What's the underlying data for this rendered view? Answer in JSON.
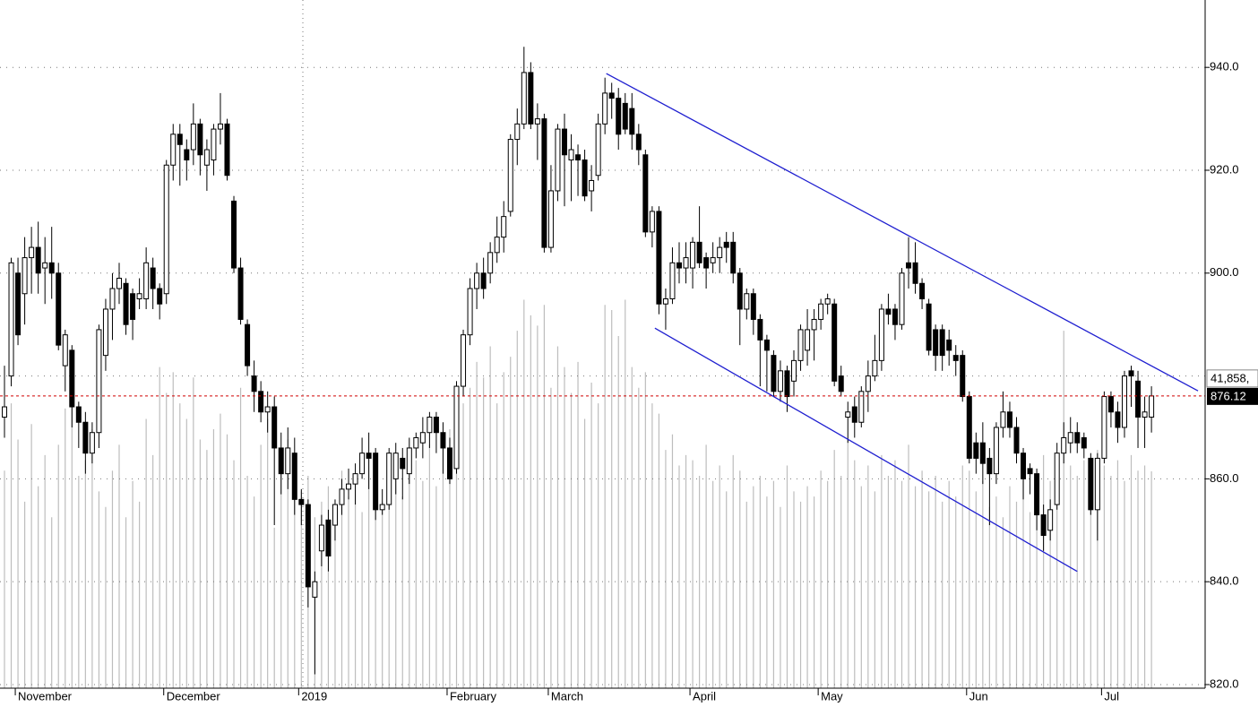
{
  "chart_data": {
    "type": "candlestick",
    "categories": [
      null,
      null,
      "November",
      null,
      null,
      null,
      null,
      null,
      null,
      null,
      null,
      null,
      null,
      null,
      null,
      null,
      null,
      null,
      null,
      null,
      null,
      null,
      null,
      null,
      "December",
      null,
      null,
      null,
      null,
      null,
      null,
      null,
      null,
      null,
      null,
      null,
      null,
      null,
      null,
      null,
      null,
      null,
      null,
      null,
      "2019",
      null,
      null,
      null,
      null,
      null,
      null,
      null,
      null,
      null,
      null,
      null,
      null,
      null,
      null,
      null,
      null,
      null,
      null,
      null,
      null,
      null,
      "February",
      null,
      null,
      null,
      null,
      null,
      null,
      null,
      null,
      null,
      null,
      null,
      null,
      null,
      null,
      "March",
      null,
      null,
      null,
      null,
      null,
      null,
      null,
      null,
      null,
      null,
      null,
      null,
      null,
      null,
      null,
      null,
      null,
      null,
      null,
      null,
      "April",
      null,
      null,
      null,
      null,
      null,
      null,
      null,
      null,
      null,
      null,
      null,
      null,
      null,
      null,
      null,
      null,
      null,
      null,
      "May",
      null,
      null,
      null,
      null,
      null,
      null,
      null,
      null,
      null,
      null,
      null,
      null,
      null,
      null,
      null,
      null,
      null,
      null,
      null,
      null,
      null,
      "Jun",
      null,
      null,
      null,
      null,
      null,
      null,
      null,
      null,
      null,
      null,
      null,
      null,
      null,
      null,
      null,
      null,
      null,
      null,
      null,
      "Jul",
      null,
      null,
      null,
      null,
      null,
      null,
      null
    ],
    "open": [
      872,
      880,
      900,
      896,
      903,
      905,
      901,
      902,
      900,
      882,
      885,
      874,
      871,
      865,
      869,
      884,
      893,
      897,
      898,
      896,
      895,
      895,
      901,
      897,
      896,
      921,
      927,
      924,
      924,
      929,
      921,
      922,
      928,
      929,
      914,
      901,
      890,
      880,
      877,
      873,
      874,
      866,
      861,
      865,
      856,
      855,
      837,
      846,
      852,
      851,
      855,
      858,
      859,
      861,
      865,
      865,
      854,
      855,
      860,
      864,
      861,
      866,
      867,
      869,
      872,
      869,
      866,
      862,
      878,
      888,
      897,
      900,
      900,
      904,
      907,
      912,
      926,
      929,
      939,
      929,
      930,
      905,
      916,
      928,
      922,
      923,
      922,
      916,
      919,
      929,
      935,
      934,
      933,
      932,
      927,
      923,
      908,
      912,
      894,
      895,
      902,
      901,
      901,
      906,
      903,
      902,
      903,
      906,
      906,
      900,
      893,
      896,
      891,
      887,
      884,
      877,
      881,
      879,
      883,
      885,
      889,
      891,
      894,
      894,
      880,
      872,
      874,
      871,
      877,
      880,
      883,
      893,
      893,
      890,
      902,
      902,
      898,
      894,
      889,
      889,
      887,
      884,
      884,
      876,
      867,
      867,
      864,
      861,
      870,
      873,
      870,
      865,
      862,
      861,
      853,
      850,
      855,
      865,
      867,
      869,
      868,
      864,
      854,
      864,
      876,
      873,
      870,
      881,
      879,
      872,
      872
    ],
    "high": [
      882,
      903,
      903,
      907,
      909,
      910,
      907,
      909,
      902,
      889,
      886,
      875,
      873,
      871,
      890,
      895,
      900,
      902,
      899,
      897,
      899,
      905,
      903,
      898,
      922,
      929,
      929,
      926,
      933,
      930,
      926,
      929,
      935,
      930,
      915,
      903,
      891,
      883,
      879,
      877,
      876,
      869,
      870,
      868,
      858,
      856,
      842,
      853,
      854,
      856,
      860,
      862,
      863,
      868,
      869,
      866,
      858,
      866,
      867,
      866,
      868,
      869,
      872,
      873,
      873,
      871,
      868,
      879,
      889,
      899,
      902,
      903,
      906,
      911,
      914,
      927,
      932,
      944,
      941,
      933,
      931,
      921,
      929,
      931,
      927,
      925,
      924,
      921,
      931,
      938,
      937,
      936,
      935,
      935,
      929,
      924,
      913,
      913,
      897,
      905,
      906,
      906,
      907,
      913,
      904,
      906,
      907,
      908,
      908,
      901,
      897,
      897,
      892,
      888,
      885,
      883,
      882,
      885,
      890,
      893,
      893,
      895,
      896,
      895,
      882,
      875,
      876,
      878,
      883,
      888,
      894,
      896,
      894,
      901,
      907,
      906,
      899,
      895,
      890,
      890,
      889,
      886,
      885,
      877,
      869,
      871,
      866,
      871,
      877,
      875,
      872,
      866,
      863,
      862,
      855,
      856,
      867,
      871,
      872,
      871,
      869,
      865,
      865,
      877,
      877,
      875,
      881,
      882,
      881,
      876,
      878
    ],
    "low": [
      868,
      878,
      886,
      890,
      896,
      896,
      894,
      895,
      885,
      877,
      870,
      866,
      861,
      863,
      866,
      881,
      887,
      894,
      888,
      887,
      893,
      893,
      893,
      891,
      894,
      918,
      917,
      918,
      921,
      919,
      916,
      919,
      925,
      918,
      900,
      890,
      880,
      873,
      871,
      869,
      851,
      857,
      858,
      853,
      851,
      835,
      822,
      843,
      842,
      848,
      853,
      856,
      855,
      860,
      858,
      852,
      853,
      854,
      857,
      856,
      859,
      864,
      864,
      866,
      865,
      861,
      859,
      861,
      876,
      886,
      893,
      895,
      898,
      902,
      904,
      911,
      921,
      928,
      928,
      922,
      904,
      904,
      914,
      913,
      914,
      915,
      914,
      912,
      918,
      927,
      930,
      924,
      927,
      924,
      921,
      907,
      905,
      892,
      889,
      894,
      898,
      898,
      897,
      901,
      897,
      900,
      900,
      902,
      898,
      886,
      891,
      888,
      878,
      877,
      876,
      875,
      873,
      876,
      881,
      882,
      883,
      889,
      892,
      878,
      876,
      867,
      868,
      870,
      873,
      879,
      881,
      890,
      887,
      889,
      897,
      896,
      893,
      884,
      881,
      881,
      882,
      880,
      875,
      863,
      861,
      859,
      851,
      859,
      868,
      868,
      863,
      856,
      857,
      850,
      846,
      848,
      854,
      863,
      865,
      865,
      864,
      853,
      848,
      863,
      870,
      867,
      868,
      874,
      866,
      866,
      869
    ],
    "close": [
      874,
      902,
      888,
      903,
      905,
      900,
      902,
      900,
      886,
      888,
      874,
      871,
      865,
      869,
      889,
      893,
      897,
      899,
      890,
      891,
      896,
      902,
      897,
      894,
      921,
      927,
      925,
      922,
      929,
      923,
      924,
      928,
      929,
      919,
      901,
      891,
      882,
      877,
      873,
      874,
      866,
      861,
      866,
      856,
      855,
      839,
      840,
      851,
      845,
      855,
      858,
      859,
      861,
      865,
      864,
      854,
      855,
      865,
      865,
      862,
      866,
      868,
      869,
      872,
      869,
      866,
      860,
      878,
      888,
      897,
      900,
      897,
      904,
      907,
      911,
      926,
      929,
      939,
      929,
      930,
      905,
      916,
      928,
      923,
      924,
      922,
      915,
      918,
      929,
      935,
      934,
      927,
      928,
      927,
      924,
      908,
      912,
      894,
      895,
      902,
      901,
      903,
      906,
      902,
      901,
      903,
      905,
      905,
      900,
      893,
      896,
      891,
      887,
      885,
      877,
      881,
      876,
      883,
      889,
      889,
      891,
      894,
      895,
      879,
      877,
      873,
      871,
      877,
      880,
      883,
      893,
      892,
      890,
      900,
      901,
      898,
      895,
      885,
      884,
      884,
      885,
      883,
      876,
      864,
      864,
      863,
      861,
      870,
      873,
      870,
      865,
      860,
      861,
      853,
      849,
      854,
      865,
      868,
      869,
      867,
      866,
      854,
      864,
      876,
      873,
      870,
      880,
      880,
      872,
      873,
      876.12
    ],
    "volume": [
      42000,
      55000,
      48000,
      36000,
      51000,
      39000,
      45000,
      33000,
      47000,
      54000,
      60000,
      41000,
      44000,
      50000,
      38000,
      35000,
      42000,
      47000,
      33000,
      40000,
      36000,
      52000,
      45000,
      62000,
      57000,
      61000,
      55000,
      52000,
      60000,
      48000,
      46000,
      50000,
      53000,
      49000,
      44000,
      58000,
      41000,
      37000,
      47000,
      52000,
      31000,
      44000,
      48000,
      40000,
      38000,
      41000,
      33000,
      36000,
      39000,
      35000,
      42000,
      37000,
      40000,
      34000,
      45000,
      38000,
      36000,
      41000,
      43000,
      37000,
      46000,
      44000,
      40000,
      47000,
      39000,
      48000,
      50000,
      52000,
      55000,
      58000,
      63000,
      60000,
      66000,
      55000,
      61000,
      64000,
      69000,
      75000,
      72000,
      70000,
      74000,
      58000,
      66000,
      62000,
      57000,
      63000,
      52000,
      59000,
      55000,
      74000,
      73000,
      68000,
      75000,
      62000,
      58000,
      61000,
      55000,
      53000,
      46000,
      49000,
      43000,
      45000,
      44000,
      41000,
      47000,
      40000,
      43000,
      38000,
      45000,
      42000,
      36000,
      39000,
      41000,
      37000,
      40000,
      35000,
      43000,
      38000,
      36000,
      39000,
      37000,
      42000,
      40000,
      46000,
      41000,
      48000,
      44000,
      39000,
      43000,
      38000,
      45000,
      41000,
      44000,
      40000,
      47000,
      39000,
      42000,
      38000,
      41000,
      36000,
      40000,
      37000,
      43000,
      42000,
      38000,
      40000,
      35000,
      37000,
      33000,
      39000,
      36000,
      41000,
      34000,
      38000,
      45000,
      40000,
      37000,
      69000,
      43000,
      41000,
      44000,
      39000,
      46000,
      43000,
      41000,
      44000,
      40000,
      45000,
      42000,
      43000,
      41858
    ],
    "last_volume_label": "41,858,",
    "volume_lim": [
      0,
      100000
    ],
    "volume_color": "#bdbdbd",
    "up_color": "#ffffff",
    "down_color": "#000000",
    "ylim": [
      819.3,
      953.1
    ],
    "yticks": [
      {
        "value": 940,
        "label": "940.0"
      },
      {
        "value": 920,
        "label": "920.0"
      },
      {
        "value": 900,
        "label": "900.0"
      },
      {
        "value": 860,
        "label": "860.0"
      },
      {
        "value": 840,
        "label": "840.0"
      },
      {
        "value": 820,
        "label": "820.0"
      }
    ],
    "minor_grid": [
      880
    ],
    "grid": true,
    "last_price_color": "#d00000",
    "trendlines": [
      {
        "color": "#1f1fd0",
        "x": [
          89.2,
          176.9
        ],
        "y": [
          938.8,
          877.1
        ]
      },
      {
        "color": "#1f1fd0",
        "x": [
          96.4,
          159.0
        ],
        "y": [
          889.3,
          842.0
        ]
      }
    ]
  }
}
